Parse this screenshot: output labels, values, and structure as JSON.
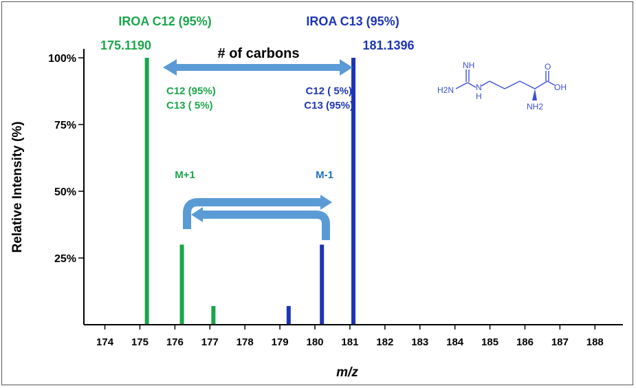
{
  "chart_data": {
    "type": "bar",
    "xlabel": "m/z",
    "ylabel": "Relative Intensity (%)",
    "xlim": [
      173.4,
      188.8
    ],
    "ylim": [
      0,
      100
    ],
    "x_ticks": [
      "174",
      "175",
      "176",
      "177",
      "178",
      "179",
      "180",
      "181",
      "182",
      "183",
      "184",
      "185",
      "186",
      "187",
      "188"
    ],
    "y_ticks": [
      {
        "value": 100,
        "label": "100%"
      },
      {
        "value": 75,
        "label": "75%"
      },
      {
        "value": 50,
        "label": "50%"
      },
      {
        "value": 25,
        "label": "25%"
      }
    ],
    "series": [
      {
        "name": "IROA C12 (95%)",
        "color": "#1aa64b",
        "points": [
          {
            "mz": 175.2,
            "intensity": 100
          },
          {
            "mz": 176.2,
            "intensity": 30
          },
          {
            "mz": 177.1,
            "intensity": 7
          }
        ]
      },
      {
        "name": "IROA C13 (95%)",
        "color": "#1d35b5",
        "points": [
          {
            "mz": 179.25,
            "intensity": 7
          },
          {
            "mz": 180.2,
            "intensity": 30
          },
          {
            "mz": 181.1,
            "intensity": 100
          }
        ]
      }
    ],
    "annotations": {
      "c12_header": "IROA C12 (95%)",
      "c13_header": "IROA C13 (95%)",
      "c12_peak_mass": "175.1190",
      "c13_peak_mass": "181.1396",
      "carbons_label": "# of carbons",
      "c12_comp_line1": "C12 (95%)",
      "c12_comp_line2": "C13 ( 5%)",
      "c13_comp_line1": "C12 ( 5%)",
      "c13_comp_line2": "C13 (95%)",
      "m_plus_1": "M+1",
      "m_minus_1": "M-1"
    },
    "structure_labels": {
      "nh": "NH",
      "h2n_left": "H2N",
      "nh_bottom": "H",
      "n_main": "N",
      "o_top": "O",
      "oh": "OH",
      "nh2": "NH2"
    },
    "grid": false
  },
  "colors": {
    "green": "#1aa64b",
    "blue": "#1d35b5",
    "light_blue": "#5b9bd5",
    "mid_blue": "#1f6fbf",
    "axis": "#000000",
    "structure": "#3a4fd6"
  }
}
